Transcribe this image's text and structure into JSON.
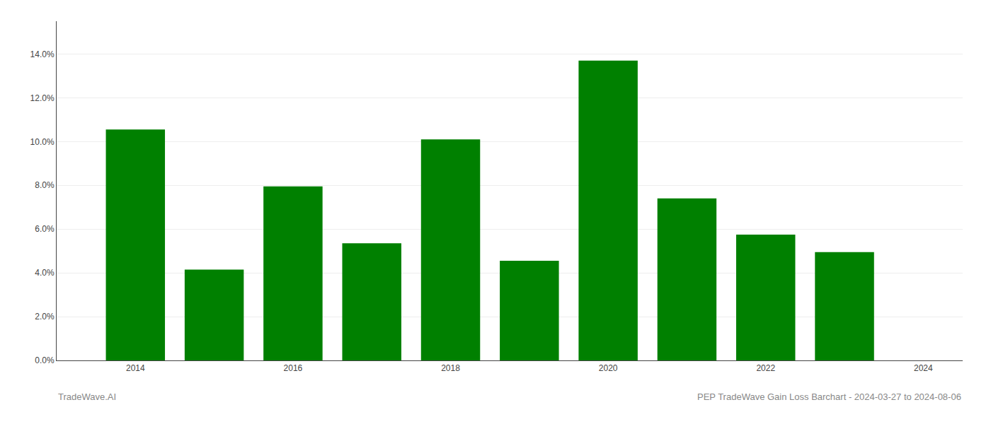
{
  "chart_data": {
    "type": "bar",
    "x": [
      2014,
      2015,
      2016,
      2017,
      2018,
      2019,
      2020,
      2021,
      2022,
      2023
    ],
    "values": [
      0.1055,
      0.0415,
      0.0795,
      0.0535,
      0.101,
      0.0455,
      0.137,
      0.074,
      0.0575,
      0.0495
    ],
    "color": "#008000",
    "xlim": [
      2013.0,
      2024.5
    ],
    "xticks": [
      2014,
      2016,
      2018,
      2020,
      2022,
      2024
    ],
    "ylim": [
      0,
      0.155
    ],
    "yticks": [
      {
        "value": 0.0,
        "label": "0.0%"
      },
      {
        "value": 0.02,
        "label": "2.0%"
      },
      {
        "value": 0.04,
        "label": "4.0%"
      },
      {
        "value": 0.06,
        "label": "6.0%"
      },
      {
        "value": 0.08,
        "label": "8.0%"
      },
      {
        "value": 0.1,
        "label": "10.0%"
      },
      {
        "value": 0.12,
        "label": "12.0%"
      },
      {
        "value": 0.14,
        "label": "14.0%"
      }
    ],
    "grid": true,
    "annotations": [
      "TradeWave.AI",
      "PEP TradeWave Gain Loss Barchart - 2024-03-27 to 2024-08-06"
    ]
  }
}
